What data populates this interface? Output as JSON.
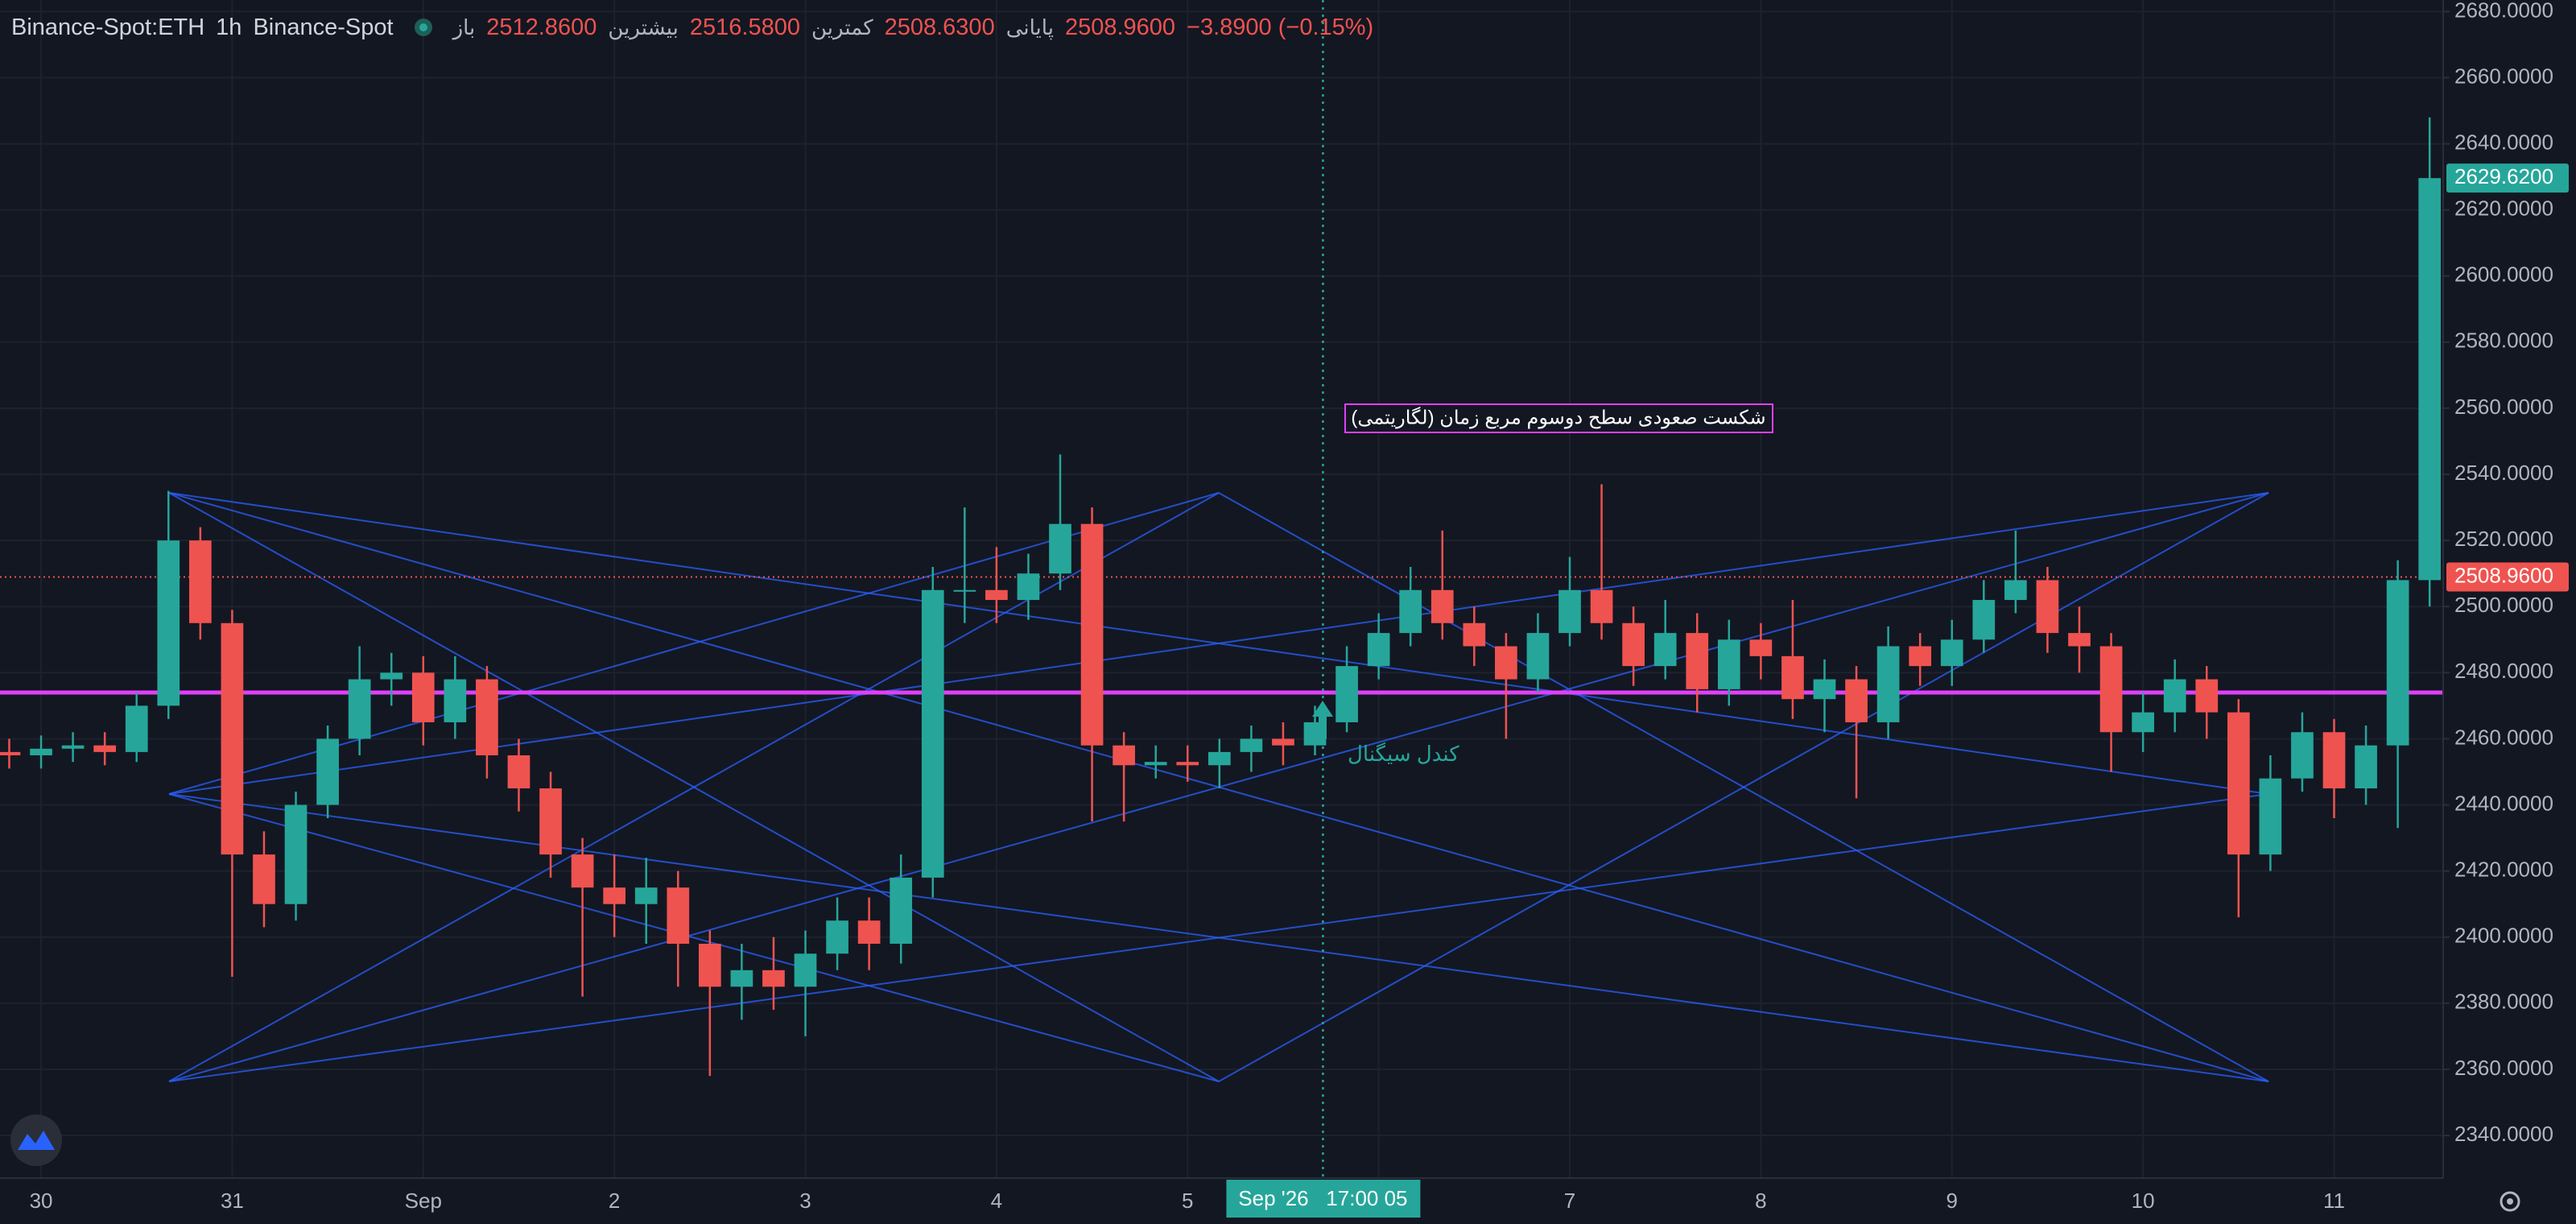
{
  "header": {
    "symbol": "Binance-Spot:ETH",
    "interval": "1h",
    "exchange": "Binance-Spot",
    "open_label": "باز",
    "open": "2512.8600",
    "high_label": "بیشترین",
    "high": "2516.5800",
    "low_label": "کمترین",
    "low": "2508.6300",
    "close_label": "پایانی",
    "close": "2508.9600",
    "change": "−3.8900 (−0.15%)"
  },
  "chart_data": {
    "type": "candlestick",
    "x": [
      -4,
      0,
      4,
      8,
      12,
      16,
      20,
      24,
      28,
      32,
      36,
      40,
      44,
      48,
      52,
      56,
      60,
      64,
      68,
      72,
      76,
      80,
      84,
      88,
      92,
      96,
      100,
      104,
      108,
      112,
      116,
      120,
      124,
      128,
      132,
      136,
      140,
      144,
      148,
      152,
      156,
      160,
      164,
      168,
      172,
      176,
      180,
      184,
      188,
      192,
      196,
      200,
      204,
      208,
      212,
      216,
      220,
      224,
      228,
      232,
      236,
      240,
      244,
      248,
      252,
      256,
      260,
      264,
      268,
      272,
      276,
      280,
      284,
      288,
      292,
      296,
      300
    ],
    "open": [
      2456,
      2455,
      2457,
      2458,
      2456,
      2470,
      2520,
      2495,
      2425,
      2410,
      2440,
      2460,
      2478,
      2480,
      2465,
      2478,
      2455,
      2445,
      2425,
      2415,
      2410,
      2415,
      2398,
      2385,
      2390,
      2385,
      2395,
      2405,
      2398,
      2418,
      2505,
      2505,
      2502,
      2510,
      2525,
      2458,
      2452,
      2453,
      2452,
      2456,
      2460,
      2458,
      2465,
      2482,
      2492,
      2505,
      2495,
      2488,
      2478,
      2492,
      2505,
      2495,
      2482,
      2492,
      2475,
      2490,
      2485,
      2472,
      2478,
      2465,
      2488,
      2482,
      2490,
      2502,
      2508,
      2492,
      2488,
      2462,
      2468,
      2478,
      2468,
      2425,
      2448,
      2462,
      2445,
      2458,
      2508
    ],
    "high": [
      2460,
      2461,
      2462,
      2462,
      2474,
      2535,
      2524,
      2499,
      2432,
      2444,
      2464,
      2488,
      2486,
      2485,
      2485,
      2482,
      2460,
      2450,
      2430,
      2425,
      2424,
      2420,
      2402,
      2398,
      2400,
      2402,
      2412,
      2412,
      2425,
      2512,
      2530,
      2518,
      2516,
      2546,
      2530,
      2462,
      2458,
      2458,
      2460,
      2464,
      2465,
      2470,
      2488,
      2498,
      2512,
      2523,
      2500,
      2492,
      2498,
      2515,
      2537,
      2500,
      2502,
      2498,
      2496,
      2495,
      2502,
      2484,
      2482,
      2494,
      2492,
      2496,
      2508,
      2523,
      2512,
      2500,
      2492,
      2474,
      2484,
      2482,
      2472,
      2455,
      2468,
      2466,
      2464,
      2514,
      2648
    ],
    "low": [
      2451,
      2451,
      2453,
      2452,
      2453,
      2466,
      2490,
      2388,
      2403,
      2405,
      2436,
      2455,
      2470,
      2458,
      2460,
      2448,
      2438,
      2418,
      2382,
      2400,
      2398,
      2385,
      2358,
      2375,
      2378,
      2370,
      2390,
      2390,
      2392,
      2412,
      2495,
      2495,
      2496,
      2505,
      2435,
      2435,
      2448,
      2447,
      2445,
      2450,
      2452,
      2455,
      2462,
      2478,
      2488,
      2490,
      2482,
      2460,
      2474,
      2488,
      2490,
      2476,
      2478,
      2468,
      2470,
      2478,
      2466,
      2462,
      2442,
      2460,
      2476,
      2476,
      2486,
      2498,
      2486,
      2480,
      2450,
      2456,
      2462,
      2460,
      2406,
      2420,
      2444,
      2436,
      2440,
      2433,
      2500
    ],
    "close": [
      2455,
      2457,
      2458,
      2456,
      2470,
      2520,
      2495,
      2425,
      2410,
      2440,
      2460,
      2478,
      2480,
      2465,
      2478,
      2455,
      2445,
      2425,
      2415,
      2410,
      2415,
      2398,
      2385,
      2390,
      2385,
      2395,
      2405,
      2398,
      2418,
      2505,
      2505,
      2502,
      2510,
      2525,
      2458,
      2452,
      2453,
      2452,
      2456,
      2460,
      2458,
      2465,
      2482,
      2492,
      2505,
      2495,
      2488,
      2478,
      2492,
      2505,
      2495,
      2482,
      2492,
      2475,
      2490,
      2485,
      2472,
      2478,
      2465,
      2488,
      2482,
      2490,
      2502,
      2508,
      2492,
      2488,
      2462,
      2468,
      2478,
      2468,
      2425,
      2448,
      2462,
      2445,
      2458,
      2508,
      2629.62
    ],
    "up_color": "#26a69a",
    "down_color": "#ef5350",
    "xlim": [
      -5.16,
      301.7
    ],
    "xticks": [
      {
        "value": 0,
        "label": "30"
      },
      {
        "value": 24,
        "label": "31"
      },
      {
        "value": 48,
        "label": "Sep"
      },
      {
        "value": 72,
        "label": "2"
      },
      {
        "value": 96,
        "label": "3"
      },
      {
        "value": 120,
        "label": "4"
      },
      {
        "value": 144,
        "label": "5"
      },
      {
        "value": 168,
        "label": "6"
      },
      {
        "value": 192,
        "label": "7"
      },
      {
        "value": 216,
        "label": "8"
      },
      {
        "value": 240,
        "label": "9"
      },
      {
        "value": 264,
        "label": "10"
      },
      {
        "value": 288,
        "label": "11"
      }
    ],
    "ylim": [
      2327.1,
      2683.5
    ],
    "yticks": [
      {
        "value": 2340,
        "label": "2340.0000"
      },
      {
        "value": 2360,
        "label": "2360.0000"
      },
      {
        "value": 2380,
        "label": "2380.0000"
      },
      {
        "value": 2400,
        "label": "2400.0000"
      },
      {
        "value": 2420,
        "label": "2420.0000"
      },
      {
        "value": 2440,
        "label": "2440.0000"
      },
      {
        "value": 2460,
        "label": "2460.0000"
      },
      {
        "value": 2480,
        "label": "2480.0000"
      },
      {
        "value": 2500,
        "label": "2500.0000"
      },
      {
        "value": 2520,
        "label": "2520.0000"
      },
      {
        "value": 2540,
        "label": "2540.0000"
      },
      {
        "value": 2560,
        "label": "2560.0000"
      },
      {
        "value": 2580,
        "label": "2580.0000"
      },
      {
        "value": 2600,
        "label": "2600.0000"
      },
      {
        "value": 2620,
        "label": "2620.0000"
      },
      {
        "value": 2640,
        "label": "2640.0000"
      },
      {
        "value": 2660,
        "label": "2660.0000"
      },
      {
        "value": 2680,
        "label": "2680.0000"
      }
    ],
    "grid": true,
    "hline": {
      "value": 2474,
      "color": "#e040fb"
    },
    "price_line": {
      "value": 2508.96,
      "label": "2508.9600"
    },
    "last_price": {
      "value": 2629.62,
      "label": "2629.6200"
    },
    "crosshair": {
      "x": 161,
      "label": "Sep '26   17:00 05"
    },
    "annotations": [
      "شکست صعودی سطح دوسوم مربع زمان (لگاریتمی)",
      "کندل سیگنال"
    ]
  }
}
